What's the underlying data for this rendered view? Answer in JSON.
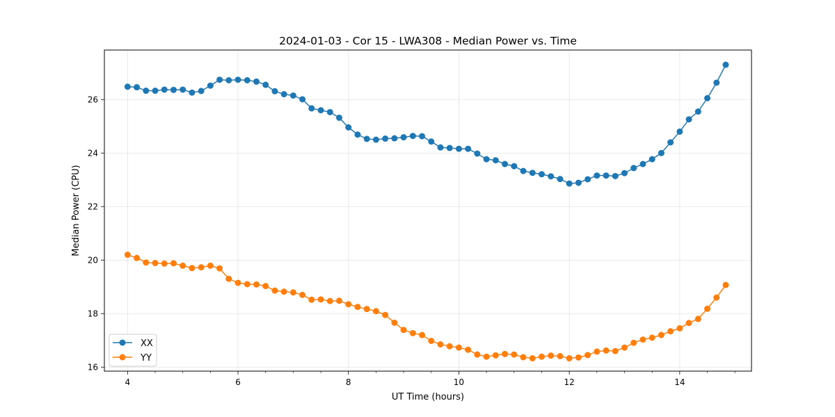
{
  "chart_data": {
    "type": "line",
    "title": "2024-01-03 - Cor 15 - LWA308 - Median Power vs. Time",
    "xlabel": "UT Time (hours)",
    "ylabel": "Median Power (CPU)",
    "xlim": [
      3.58,
      15.3
    ],
    "ylim": [
      15.85,
      27.85
    ],
    "xticks": [
      4,
      6,
      8,
      10,
      12,
      14
    ],
    "xtick_labels": [
      "4",
      "6",
      "8",
      "10",
      "12",
      "14"
    ],
    "yticks": [
      16,
      18,
      20,
      22,
      24,
      26
    ],
    "ytick_labels": [
      "16",
      "18",
      "20",
      "22",
      "24",
      "26"
    ],
    "grid": true,
    "legend_position": "lower-left",
    "x": [
      4.0,
      4.1667,
      4.3333,
      4.5,
      4.6667,
      4.8333,
      5.0,
      5.1667,
      5.3333,
      5.5,
      5.6667,
      5.8333,
      6.0,
      6.1667,
      6.3333,
      6.5,
      6.6667,
      6.8333,
      7.0,
      7.1667,
      7.3333,
      7.5,
      7.6667,
      7.8333,
      8.0,
      8.1667,
      8.3333,
      8.5,
      8.6667,
      8.8333,
      9.0,
      9.1667,
      9.3333,
      9.5,
      9.6667,
      9.8333,
      10.0,
      10.1667,
      10.3333,
      10.5,
      10.6667,
      10.8333,
      11.0,
      11.1667,
      11.3333,
      11.5,
      11.6667,
      11.8333,
      12.0,
      12.1667,
      12.3333,
      12.5,
      12.6667,
      12.8333,
      13.0,
      13.1667,
      13.3333,
      13.5,
      13.6667,
      13.8333,
      14.0,
      14.1667,
      14.3333,
      14.5,
      14.6667,
      14.8333
    ],
    "series": [
      {
        "name": "XX",
        "color": "#1f77b4",
        "values": [
          26.48,
          26.46,
          26.33,
          26.33,
          26.37,
          26.36,
          26.37,
          26.26,
          26.32,
          26.52,
          26.74,
          26.72,
          26.74,
          26.72,
          26.67,
          26.55,
          26.31,
          26.2,
          26.15,
          26.01,
          25.67,
          25.6,
          25.53,
          25.32,
          24.96,
          24.69,
          24.53,
          24.5,
          24.54,
          24.55,
          24.59,
          24.64,
          24.63,
          24.43,
          24.21,
          24.19,
          24.16,
          24.16,
          23.98,
          23.77,
          23.73,
          23.59,
          23.51,
          23.33,
          23.26,
          23.21,
          23.13,
          23.03,
          22.86,
          22.89,
          23.02,
          23.16,
          23.16,
          23.14,
          23.25,
          23.44,
          23.59,
          23.77,
          24.0,
          24.4,
          24.8,
          25.26,
          25.55,
          26.05,
          26.63,
          27.3
        ]
      },
      {
        "name": "YY",
        "color": "#ff7f0e",
        "values": [
          20.2,
          20.08,
          19.91,
          19.89,
          19.87,
          19.88,
          19.79,
          19.7,
          19.73,
          19.79,
          19.69,
          19.3,
          19.15,
          19.1,
          19.09,
          19.03,
          18.86,
          18.82,
          18.79,
          18.7,
          18.52,
          18.53,
          18.47,
          18.48,
          18.35,
          18.25,
          18.17,
          18.09,
          17.95,
          17.66,
          17.39,
          17.27,
          17.2,
          16.98,
          16.85,
          16.78,
          16.73,
          16.65,
          16.47,
          16.39,
          16.44,
          16.49,
          16.47,
          16.37,
          16.33,
          16.39,
          16.43,
          16.41,
          16.33,
          16.36,
          16.45,
          16.58,
          16.62,
          16.6,
          16.73,
          16.91,
          17.03,
          17.1,
          17.2,
          17.34,
          17.45,
          17.65,
          17.8,
          18.18,
          18.6,
          19.07
        ]
      }
    ]
  }
}
